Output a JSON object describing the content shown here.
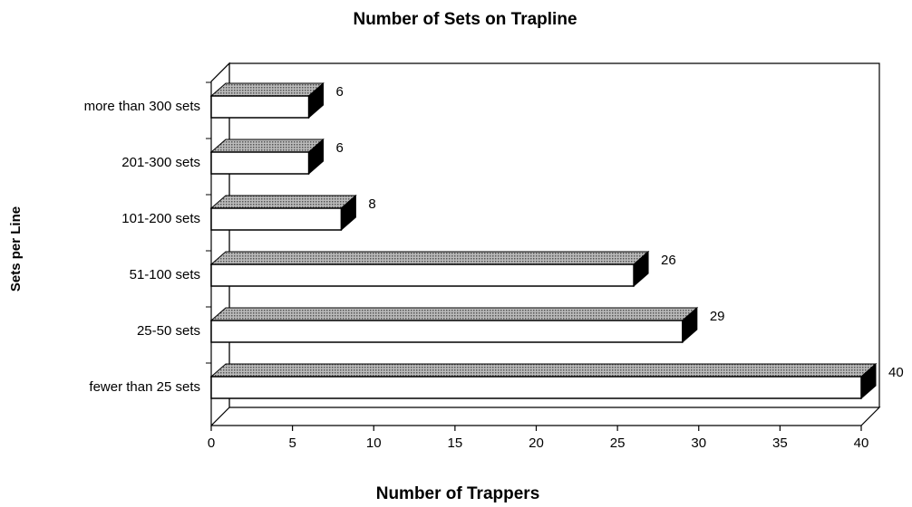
{
  "chart_data": {
    "type": "bar3d_horizontal",
    "title": "Number of Sets on Trapline",
    "xlabel": "Number of Trappers",
    "ylabel": "Sets per Line",
    "categories": [
      "more than 300 sets",
      "201-300 sets",
      "101-200 sets",
      "51-100 sets",
      "25-50 sets",
      "fewer than 25 sets"
    ],
    "values": [
      6,
      6,
      8,
      26,
      29,
      40
    ],
    "color": "#ffffff",
    "xlim": [
      0,
      40
    ],
    "xticks": [
      0,
      5,
      10,
      15,
      20,
      25,
      30,
      35,
      40
    ],
    "grid": false
  }
}
